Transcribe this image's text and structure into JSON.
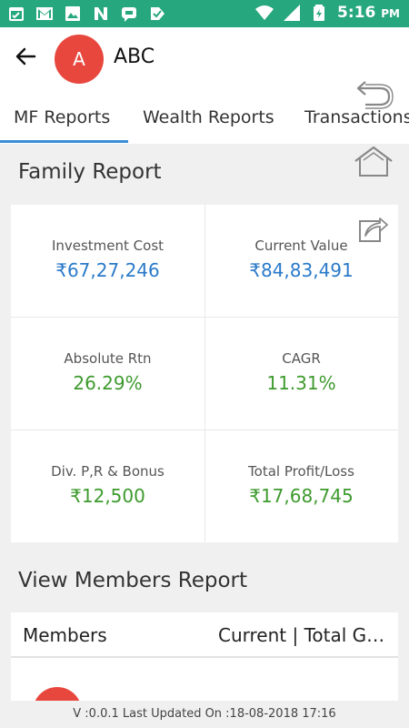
{
  "status_bar": {
    "time": "5:16",
    "ampm": "PM",
    "left_icons": [
      "calendar-icon",
      "gmail-icon",
      "image-icon",
      "n-app-icon",
      "chat-icon",
      "check-tag-icon"
    ],
    "right_icons": [
      "wifi-icon",
      "signal-icon",
      "battery-icon"
    ]
  },
  "header": {
    "avatar_letter": "A",
    "title": "ABC"
  },
  "tabs": [
    {
      "label": "MF Reports",
      "active": true
    },
    {
      "label": "Wealth Reports",
      "active": false
    },
    {
      "label": "Transactions",
      "active": false
    }
  ],
  "family_report": {
    "title": "Family Report",
    "cells": [
      {
        "label": "Investment Cost",
        "value": "₹67,27,246",
        "color": "#2a7ac9"
      },
      {
        "label": "Current Value",
        "value": "₹84,83,491",
        "color": "#2a7ac9"
      },
      {
        "label": "Absolute Rtn",
        "value": "26.29%",
        "color": "#3e9a2e"
      },
      {
        "label": "CAGR",
        "value": "11.31%",
        "color": "#3e9a2e"
      },
      {
        "label": "Div. P,R & Bonus",
        "value": "₹12,500",
        "color": "#3e9a2e"
      },
      {
        "label": "Total Profit/Loss",
        "value": "₹17,68,745",
        "color": "#3e9a2e"
      }
    ]
  },
  "members_report": {
    "title": "View Members Report",
    "col_members": "Members",
    "col_current": "Current | Total Gain"
  },
  "footer": {
    "text": "V :0.0.1 Last Updated On :18-08-2018 17:16"
  },
  "colors": {
    "status_bar": "#26a77d",
    "accent": "#3a8fd6",
    "avatar": "#e8473d",
    "value_blue": "#2a7ac9",
    "value_green": "#3e9a2e"
  }
}
